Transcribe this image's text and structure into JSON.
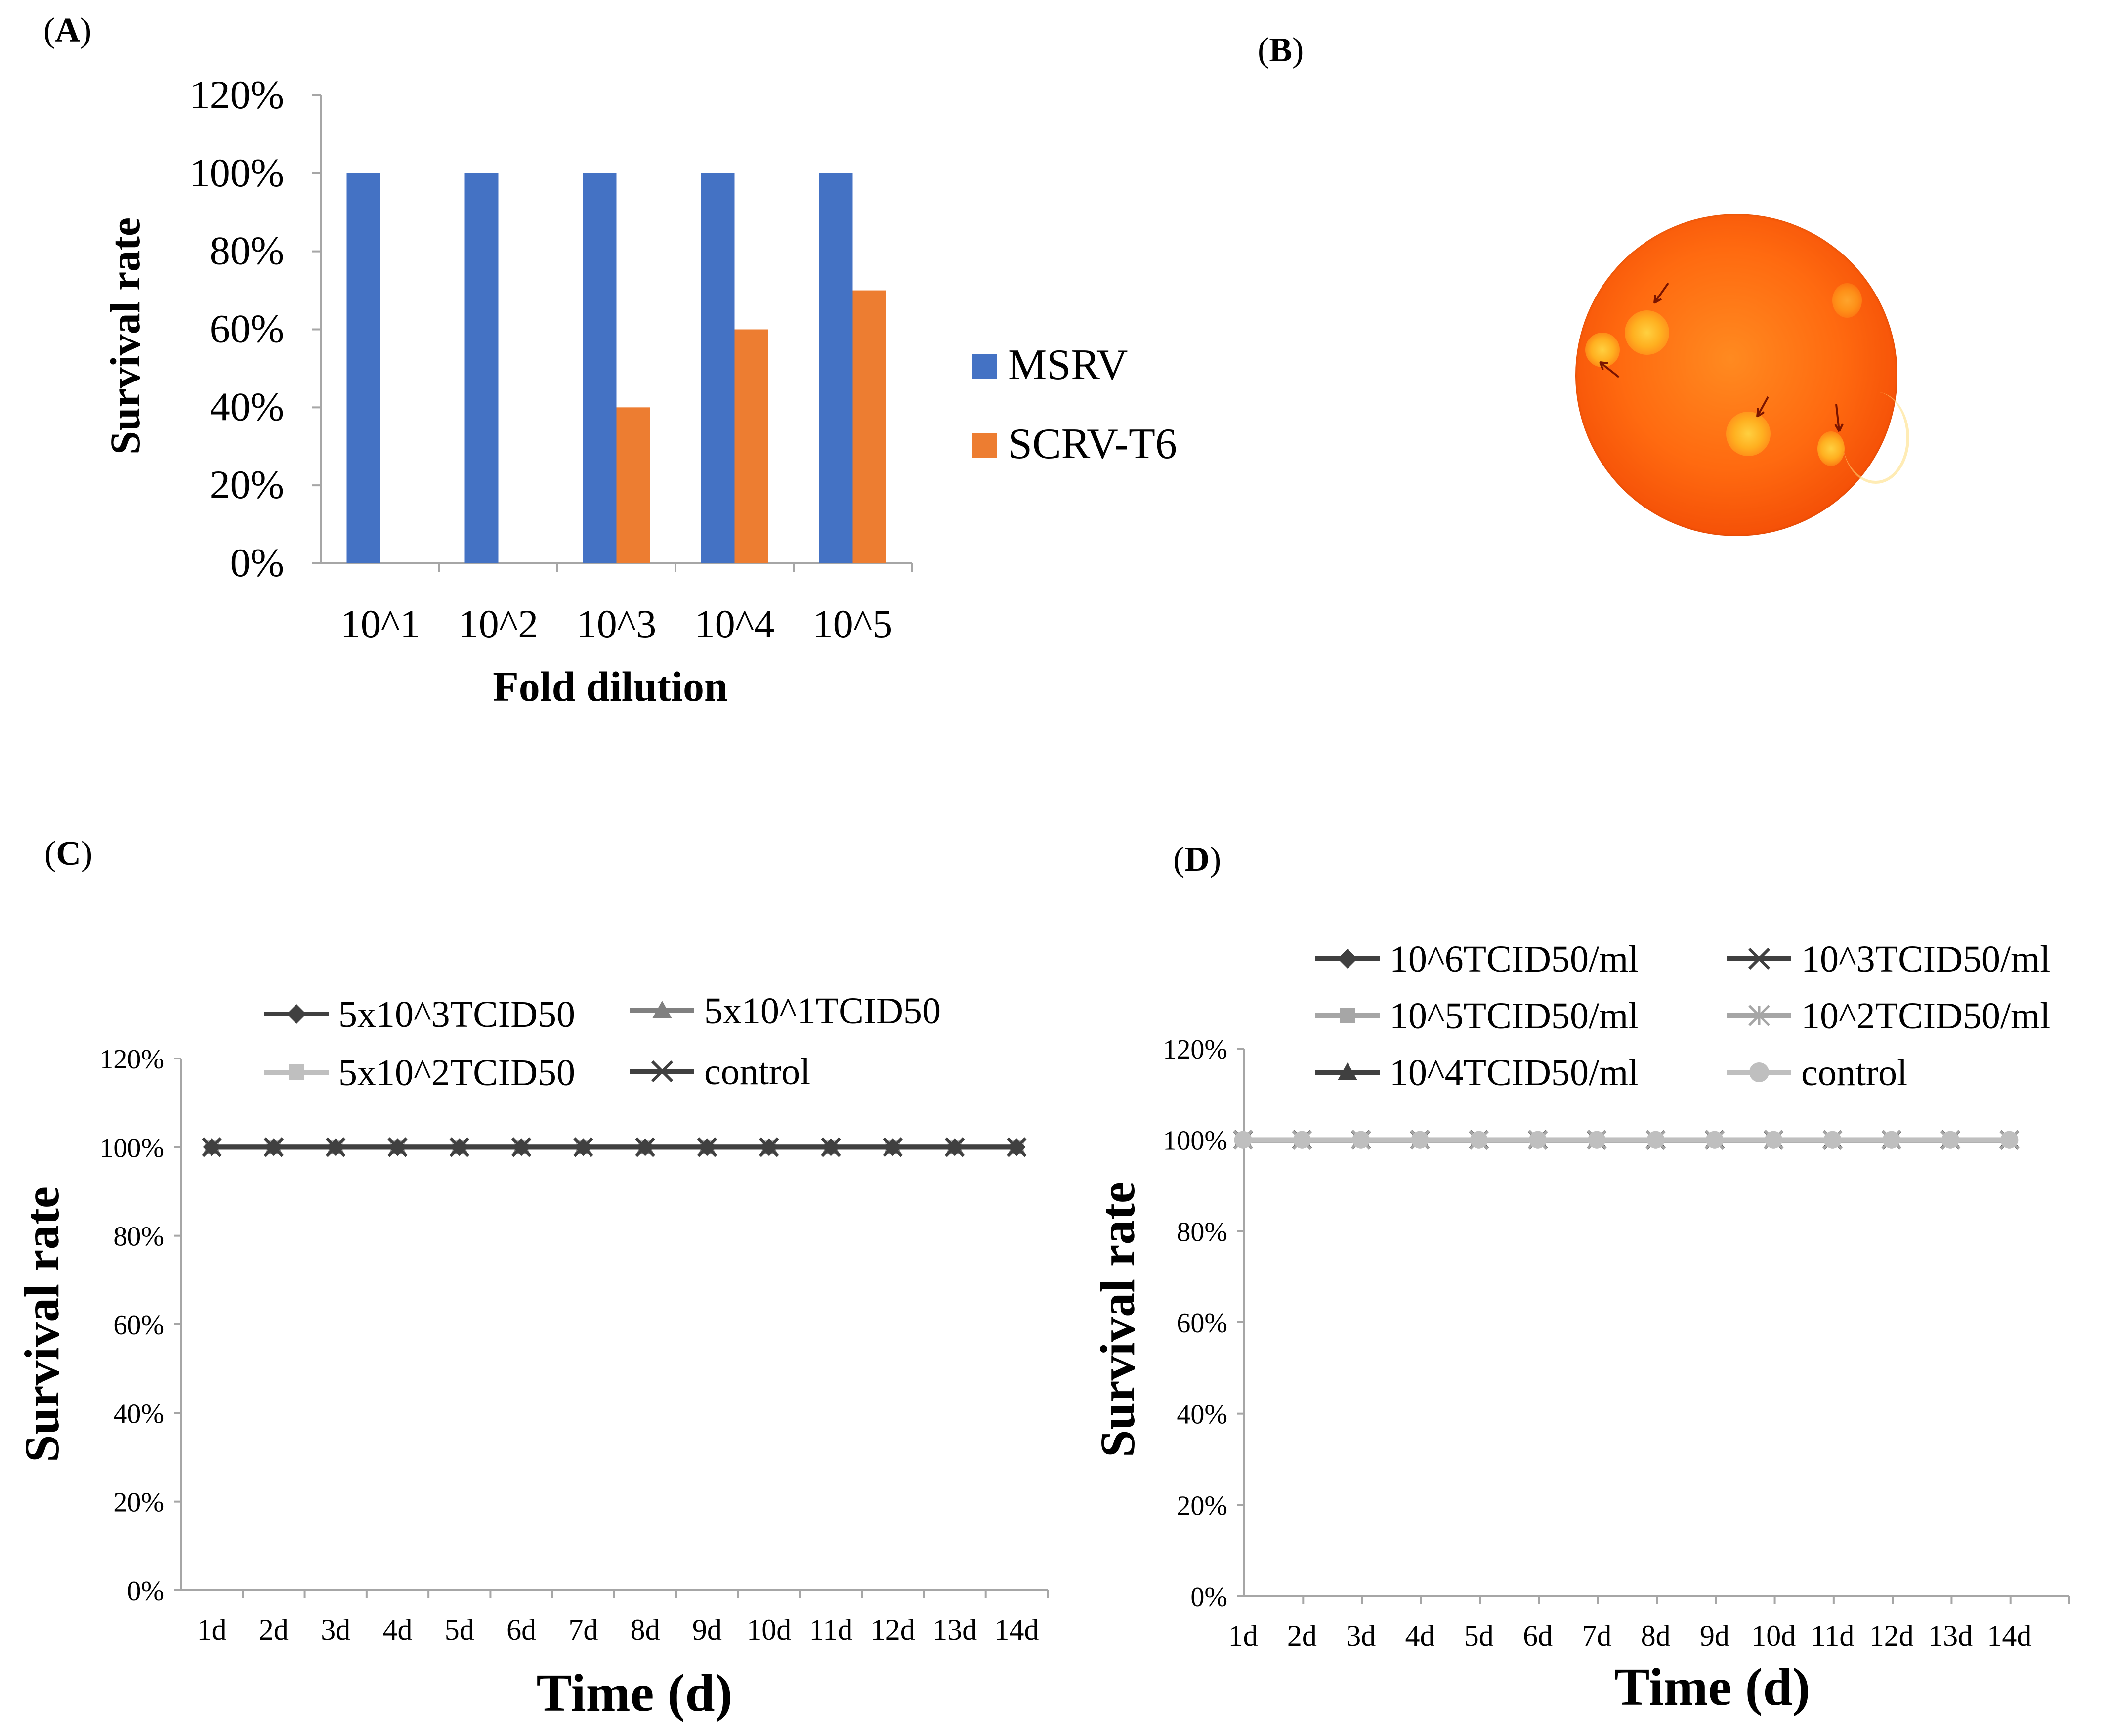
{
  "panels": {
    "a": "A",
    "b": "B",
    "c": "C",
    "d": "D"
  },
  "colors": {
    "msrv": "#4472C4",
    "scrv": "#ED7D31",
    "axis": "#A6A6A6",
    "line_dark": "#404040",
    "line_mid": "#808080",
    "line_light": "#A6A6A6",
    "line_pale": "#BFBFBF"
  },
  "chart_data": [
    {
      "id": "A",
      "type": "bar",
      "categories": [
        "10^1",
        "10^2",
        "10^3",
        "10^4",
        "10^5"
      ],
      "series": [
        {
          "name": "MSRV",
          "values": [
            100,
            100,
            100,
            100,
            100
          ]
        },
        {
          "name": "SCRV-T6",
          "values": [
            0,
            0,
            40,
            60,
            70
          ]
        }
      ],
      "xlabel": "Fold dilution",
      "ylabel": "Survival rate",
      "ylim": [
        0,
        120
      ],
      "yticks": [
        "0%",
        "20%",
        "40%",
        "60%",
        "80%",
        "100%",
        "120%"
      ],
      "legend_position": "right"
    },
    {
      "id": "C",
      "type": "line",
      "x": [
        "1d",
        "2d",
        "3d",
        "4d",
        "5d",
        "6d",
        "7d",
        "8d",
        "9d",
        "10d",
        "11d",
        "12d",
        "13d",
        "14d"
      ],
      "series": [
        {
          "name": "5x10^3TCID50",
          "marker": "diamond",
          "values": [
            100,
            100,
            100,
            100,
            100,
            100,
            100,
            100,
            100,
            100,
            100,
            100,
            100,
            100
          ]
        },
        {
          "name": "5x10^1TCID50",
          "marker": "triangle",
          "values": [
            100,
            100,
            100,
            100,
            100,
            100,
            100,
            100,
            100,
            100,
            100,
            100,
            100,
            100
          ]
        },
        {
          "name": "5x10^2TCID50",
          "marker": "square",
          "values": [
            100,
            100,
            100,
            100,
            100,
            100,
            100,
            100,
            100,
            100,
            100,
            100,
            100,
            100
          ]
        },
        {
          "name": "control",
          "marker": "x",
          "values": [
            100,
            100,
            100,
            100,
            100,
            100,
            100,
            100,
            100,
            100,
            100,
            100,
            100,
            100
          ]
        }
      ],
      "xlabel": "Time (d)",
      "ylabel": "Survival rate",
      "ylim": [
        0,
        120
      ],
      "yticks": [
        "0%",
        "20%",
        "40%",
        "60%",
        "80%",
        "100%",
        "120%"
      ],
      "legend_position": "top"
    },
    {
      "id": "D",
      "type": "line",
      "x": [
        "1d",
        "2d",
        "3d",
        "4d",
        "5d",
        "6d",
        "7d",
        "8d",
        "9d",
        "10d",
        "11d",
        "12d",
        "13d",
        "14d"
      ],
      "series": [
        {
          "name": "10^6TCID50/ml",
          "marker": "diamond",
          "values": [
            100,
            100,
            100,
            100,
            100,
            100,
            100,
            100,
            100,
            100,
            100,
            100,
            100,
            100
          ]
        },
        {
          "name": "10^3TCID50/ml",
          "marker": "x",
          "values": [
            100,
            100,
            100,
            100,
            100,
            100,
            100,
            100,
            100,
            100,
            100,
            100,
            100,
            100
          ]
        },
        {
          "name": "10^5TCID50/ml",
          "marker": "square",
          "values": [
            100,
            100,
            100,
            100,
            100,
            100,
            100,
            100,
            100,
            100,
            100,
            100,
            100,
            100
          ]
        },
        {
          "name": "10^2TCID50/ml",
          "marker": "star",
          "values": [
            100,
            100,
            100,
            100,
            100,
            100,
            100,
            100,
            100,
            100,
            100,
            100,
            100,
            100
          ]
        },
        {
          "name": "10^4TCID50/ml",
          "marker": "triangle",
          "values": [
            100,
            100,
            100,
            100,
            100,
            100,
            100,
            100,
            100,
            100,
            100,
            100,
            100,
            100
          ]
        },
        {
          "name": "control",
          "marker": "circle",
          "values": [
            100,
            100,
            100,
            100,
            100,
            100,
            100,
            100,
            100,
            100,
            100,
            100,
            100,
            100
          ]
        }
      ],
      "xlabel": "Time (d)",
      "ylabel": "Survival rate",
      "ylim": [
        0,
        120
      ],
      "yticks": [
        "0%",
        "20%",
        "40%",
        "60%",
        "80%",
        "100%",
        "120%"
      ],
      "legend_position": "top"
    }
  ]
}
